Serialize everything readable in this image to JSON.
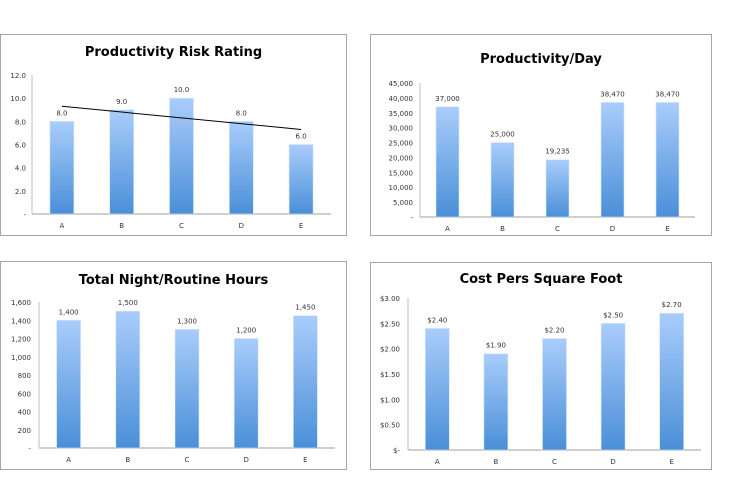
{
  "chart_data": [
    {
      "type": "bar",
      "title": "Productivity Risk Rating",
      "categories": [
        "A",
        "B",
        "C",
        "D",
        "E"
      ],
      "values": [
        8.0,
        9.0,
        10.0,
        8.0,
        6.0
      ],
      "data_labels": [
        "8.0",
        "9.0",
        "10.0",
        "8.0",
        "6.0"
      ],
      "yticks": [
        "-",
        "2.0",
        "4.0",
        "6.0",
        "8.0",
        "10.0",
        "12.0"
      ],
      "ylim": [
        0,
        12
      ],
      "xlabel": "",
      "ylabel": "",
      "grid": false,
      "trendline": {
        "type": "linear",
        "start": 9.3,
        "end": 7.3
      }
    },
    {
      "type": "bar",
      "title": "Productivity/Day",
      "categories": [
        "A",
        "B",
        "C",
        "D",
        "E"
      ],
      "values": [
        37000,
        25000,
        19235,
        38470,
        38470
      ],
      "data_labels": [
        "37,000",
        "25,000",
        "19,235",
        "38,470",
        "38,470"
      ],
      "yticks": [
        "-",
        "5,000",
        "10,000",
        "15,000",
        "20,000",
        "25,000",
        "30,000",
        "35,000",
        "40,000",
        "45,000"
      ],
      "ylim": [
        0,
        45000
      ],
      "xlabel": "",
      "ylabel": "",
      "grid": false
    },
    {
      "type": "bar",
      "title": "Total Night/Routine Hours",
      "categories": [
        "A",
        "B",
        "C",
        "D",
        "E"
      ],
      "values": [
        1400,
        1500,
        1300,
        1200,
        1450
      ],
      "data_labels": [
        "1,400",
        "1,500",
        "1,300",
        "1,200",
        "1,450"
      ],
      "yticks": [
        "-",
        "200",
        "400",
        "600",
        "800",
        "1,000",
        "1,200",
        "1,400",
        "1,600"
      ],
      "ylim": [
        0,
        1600
      ],
      "xlabel": "",
      "ylabel": "",
      "grid": false
    },
    {
      "type": "bar",
      "title": "Cost Pers Square Foot",
      "categories": [
        "A",
        "B",
        "C",
        "D",
        "E"
      ],
      "values": [
        2.4,
        1.9,
        2.2,
        2.5,
        2.7
      ],
      "data_labels": [
        "$2.40",
        "$1.90",
        "$2.20",
        "$2.50",
        "$2.70"
      ],
      "yticks": [
        "$-",
        "$0.50",
        "$1.00",
        "$1.50",
        "$2.00",
        "$2.50",
        "$3.00"
      ],
      "ylim": [
        0,
        3
      ],
      "xlabel": "",
      "ylabel": "",
      "grid": false
    }
  ],
  "colors": {
    "bar_top": "#a9cdfb",
    "bar_bottom": "#4a8fd8",
    "axis": "#bfbfbf",
    "panel_border": "#a6a6a6",
    "trendline": "#000000"
  }
}
